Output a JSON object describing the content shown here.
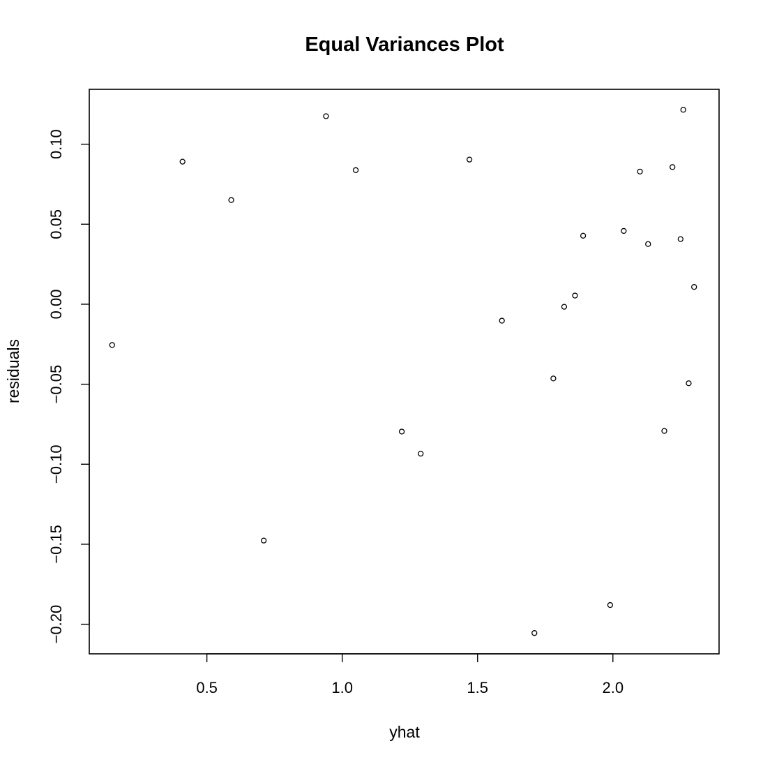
{
  "chart_data": {
    "type": "scatter",
    "title": "Equal Variances Plot",
    "xlabel": "yhat",
    "ylabel": "residuals",
    "xlim": [
      0.0655,
      2.3922
    ],
    "ylim": [
      -0.2185,
      0.1343
    ],
    "x_ticks": [
      {
        "value": 0.5,
        "label": "0.5"
      },
      {
        "value": 1.0,
        "label": "1.0"
      },
      {
        "value": 1.5,
        "label": "1.5"
      },
      {
        "value": 2.0,
        "label": "2.0"
      }
    ],
    "y_ticks": [
      {
        "value": -0.2,
        "label": "−0.20"
      },
      {
        "value": -0.15,
        "label": "−0.15"
      },
      {
        "value": -0.1,
        "label": "−0.10"
      },
      {
        "value": -0.05,
        "label": "−0.05"
      },
      {
        "value": 0.0,
        "label": "0.00"
      },
      {
        "value": 0.05,
        "label": "0.05"
      },
      {
        "value": 0.1,
        "label": "0.10"
      }
    ],
    "grid": false,
    "marker": "open-circle",
    "points": [
      {
        "x": 0.15,
        "y": -0.0255
      },
      {
        "x": 0.41,
        "y": 0.0891
      },
      {
        "x": 0.59,
        "y": 0.0651
      },
      {
        "x": 0.71,
        "y": -0.1477
      },
      {
        "x": 0.94,
        "y": 0.1175
      },
      {
        "x": 1.05,
        "y": 0.0838
      },
      {
        "x": 1.22,
        "y": -0.0796
      },
      {
        "x": 1.29,
        "y": -0.0934
      },
      {
        "x": 1.47,
        "y": 0.0904
      },
      {
        "x": 1.59,
        "y": -0.0103
      },
      {
        "x": 1.71,
        "y": -0.2055
      },
      {
        "x": 1.78,
        "y": -0.0464
      },
      {
        "x": 1.82,
        "y": -0.0016
      },
      {
        "x": 1.86,
        "y": 0.0054
      },
      {
        "x": 1.89,
        "y": 0.0428
      },
      {
        "x": 1.99,
        "y": -0.188
      },
      {
        "x": 2.04,
        "y": 0.0458
      },
      {
        "x": 2.1,
        "y": 0.0829
      },
      {
        "x": 2.13,
        "y": 0.0376
      },
      {
        "x": 2.19,
        "y": -0.0792
      },
      {
        "x": 2.22,
        "y": 0.0857
      },
      {
        "x": 2.25,
        "y": 0.0407
      },
      {
        "x": 2.26,
        "y": 0.1215
      },
      {
        "x": 2.28,
        "y": -0.0494
      },
      {
        "x": 2.3,
        "y": 0.0108
      }
    ]
  }
}
